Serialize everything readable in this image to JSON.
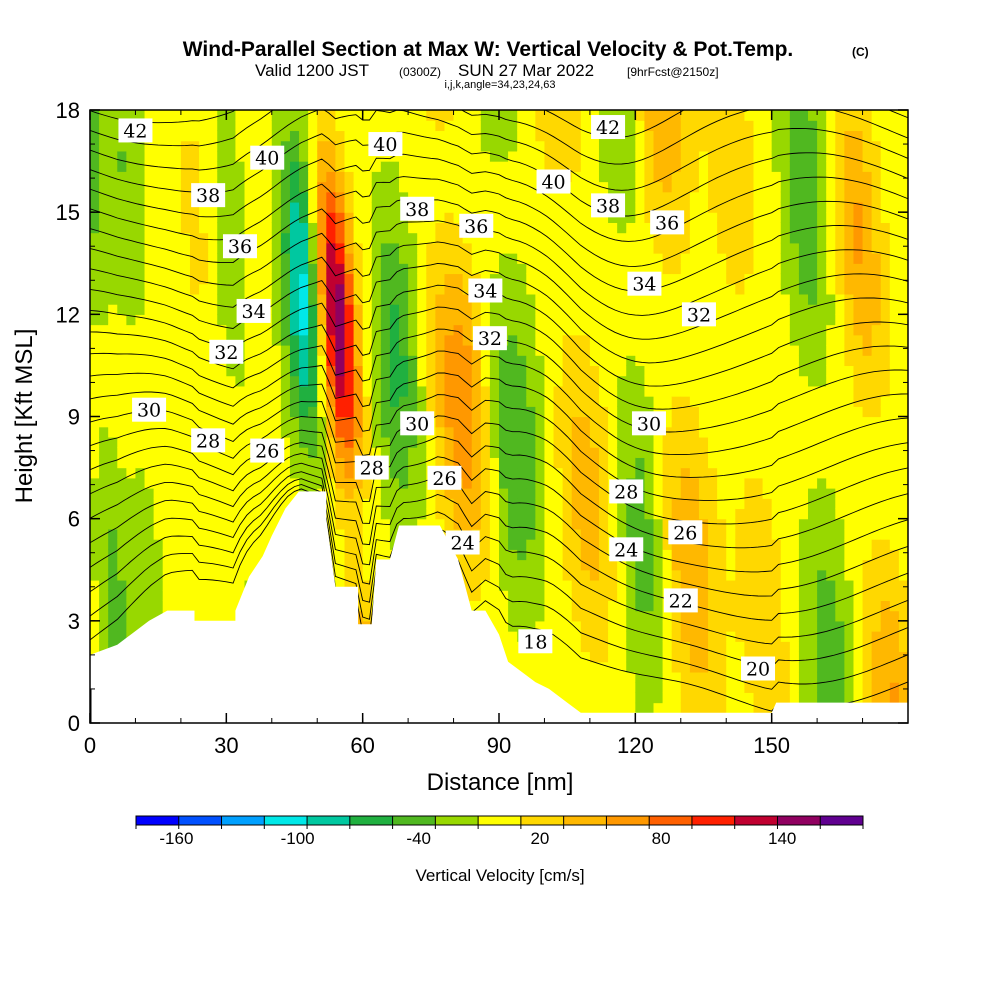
{
  "chart_data": {
    "type": "heatmap",
    "title": "Wind-Parallel Section at Max W: Vertical Velocity & Pot.Temp.",
    "title_mark": "(C)",
    "subtitle_valid": "Valid 1200 JST",
    "subtitle_utc": "(0300Z)",
    "subtitle_date": "SUN 27 Mar 2022",
    "subtitle_fcst": "[9hrFcst@2150z]",
    "subtitle_indices": "i,j,k,angle=34,23,24,63",
    "xlabel": "Distance [nm]",
    "ylabel": "Height [Kft MSL]",
    "xlim": [
      0,
      180
    ],
    "ylim": [
      0,
      18
    ],
    "x_ticks": [
      "0",
      "30",
      "60",
      "90",
      "120",
      "150"
    ],
    "y_ticks": [
      "0",
      "3",
      "6",
      "9",
      "12",
      "15",
      "18"
    ],
    "colorbar_label": "Vertical Velocity [cm/s]",
    "colorbar_ticks": [
      "-160",
      "-100",
      "-40",
      "20",
      "80",
      "140"
    ],
    "colorbar_range": [
      -180,
      180
    ],
    "colorbar_colors": [
      "#0000ff",
      "#0050ff",
      "#00a0ff",
      "#00e8e8",
      "#00c8a0",
      "#20b040",
      "#50b820",
      "#98d800",
      "#ffff00",
      "#ffd800",
      "#ffb800",
      "#ff9800",
      "#ff6000",
      "#ff2000",
      "#c00030",
      "#900060",
      "#600090"
    ],
    "velocity_features": [
      {
        "x": 3,
        "width": 3,
        "peak": -40
      },
      {
        "x": 10,
        "width": 4,
        "peak": -28
      },
      {
        "x": 27,
        "width": 5,
        "peak": 18
      },
      {
        "x": 32,
        "width": 4,
        "peak": -26
      },
      {
        "x": 48,
        "width": 4,
        "peak": -100
      },
      {
        "x": 56,
        "width": 4,
        "peak": 150
      },
      {
        "x": 68,
        "width": 5,
        "peak": -55
      },
      {
        "x": 82,
        "width": 6,
        "peak": 72
      },
      {
        "x": 93,
        "width": 6,
        "peak": -50
      },
      {
        "x": 108,
        "width": 6,
        "peak": 42
      },
      {
        "x": 120,
        "width": 5,
        "peak": -40
      },
      {
        "x": 130,
        "width": 6,
        "peak": 50
      },
      {
        "x": 145,
        "width": 5,
        "peak": 30
      },
      {
        "x": 160,
        "width": 5,
        "peak": -45
      },
      {
        "x": 172,
        "width": 5,
        "peak": 55
      }
    ],
    "theta_levels": [
      18,
      19,
      20,
      21,
      22,
      23,
      24,
      25,
      26,
      27,
      28,
      29,
      30,
      31,
      32,
      33,
      34,
      35,
      36,
      37,
      38,
      39,
      40,
      41,
      42
    ],
    "contour_labels": [
      {
        "text": "42",
        "x": 10,
        "y": 17.4
      },
      {
        "text": "40",
        "x": 39,
        "y": 16.6
      },
      {
        "text": "40",
        "x": 65,
        "y": 17.0
      },
      {
        "text": "38",
        "x": 26,
        "y": 15.5
      },
      {
        "text": "38",
        "x": 72,
        "y": 15.1
      },
      {
        "text": "36",
        "x": 33,
        "y": 14.0
      },
      {
        "text": "36",
        "x": 85,
        "y": 14.6
      },
      {
        "text": "34",
        "x": 36,
        "y": 12.1
      },
      {
        "text": "34",
        "x": 87,
        "y": 12.7
      },
      {
        "text": "32",
        "x": 30,
        "y": 10.9
      },
      {
        "text": "32",
        "x": 88,
        "y": 11.3
      },
      {
        "text": "30",
        "x": 13,
        "y": 9.2
      },
      {
        "text": "30",
        "x": 72,
        "y": 8.8
      },
      {
        "text": "28",
        "x": 26,
        "y": 8.3
      },
      {
        "text": "28",
        "x": 62,
        "y": 7.5
      },
      {
        "text": "26",
        "x": 39,
        "y": 8.0
      },
      {
        "text": "26",
        "x": 78,
        "y": 7.2
      },
      {
        "text": "24",
        "x": 82,
        "y": 5.3
      },
      {
        "text": "18",
        "x": 98,
        "y": 2.4
      },
      {
        "text": "42",
        "x": 114,
        "y": 17.5
      },
      {
        "text": "40",
        "x": 102,
        "y": 15.9
      },
      {
        "text": "38",
        "x": 114,
        "y": 15.2
      },
      {
        "text": "36",
        "x": 127,
        "y": 14.7
      },
      {
        "text": "34",
        "x": 122,
        "y": 12.9
      },
      {
        "text": "32",
        "x": 134,
        "y": 12.0
      },
      {
        "text": "30",
        "x": 123,
        "y": 8.8
      },
      {
        "text": "28",
        "x": 118,
        "y": 6.8
      },
      {
        "text": "26",
        "x": 131,
        "y": 5.6
      },
      {
        "text": "24",
        "x": 118,
        "y": 5.1
      },
      {
        "text": "22",
        "x": 130,
        "y": 3.6
      },
      {
        "text": "20",
        "x": 147,
        "y": 1.6
      }
    ]
  }
}
